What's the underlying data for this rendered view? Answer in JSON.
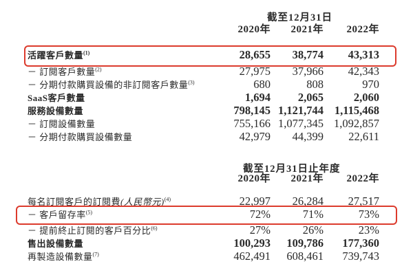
{
  "colors": {
    "highlight_red": "#dc3a2c",
    "text": "#2a2a2a",
    "background": "#ffffff"
  },
  "table1": {
    "period_header": "截至12月31日",
    "years": [
      "2020年",
      "2021年",
      "2022年"
    ],
    "rows": [
      {
        "label": "活躍客戶數量",
        "sup": "(1)",
        "values": [
          "28,655",
          "38,774",
          "43,313"
        ],
        "bold": true,
        "highlighted": true
      },
      {
        "label": "－ 訂閱客戶數量",
        "sup": "(2)",
        "values": [
          "27,975",
          "37,966",
          "42,343"
        ],
        "bold": false
      },
      {
        "label": "－ 分期付款購買設備的非訂閱客戶數量",
        "sup": "(3)",
        "values": [
          "680",
          "808",
          "970"
        ],
        "bold": false
      },
      {
        "label": "SaaS客戶數量",
        "sup": "",
        "values": [
          "1,694",
          "2,065",
          "2,060"
        ],
        "bold": true
      },
      {
        "label": "服務設備數量",
        "sup": "",
        "values": [
          "798,145",
          "1,121,744",
          "1,115,468"
        ],
        "bold": true
      },
      {
        "label": "－ 訂閱設備數量",
        "sup": "",
        "values": [
          "755,166",
          "1,077,345",
          "1,092,857"
        ],
        "bold": false
      },
      {
        "label": "－ 分期付款購買設備數量",
        "sup": "",
        "values": [
          "42,979",
          "44,399",
          "22,611"
        ],
        "bold": false
      }
    ]
  },
  "table2": {
    "period_header": "截至12月31日止年度",
    "years": [
      "2020年",
      "2021年",
      "2022年"
    ],
    "rows": [
      {
        "label": "每名訂閱客戶的訂閱費",
        "label_italic": "(人民幣元)",
        "sup": "(4)",
        "values": [
          "22,997",
          "26,284",
          "27,517"
        ],
        "bold": false
      },
      {
        "label": "－ 客戶留存率",
        "sup": "(5)",
        "values": [
          "72%",
          "71%",
          "73%"
        ],
        "bold": false,
        "highlighted": true
      },
      {
        "label": "－ 提前終止訂閱的客戶百分比",
        "sup": "(6)",
        "values": [
          "27%",
          "26%",
          "23%"
        ],
        "bold": false
      },
      {
        "label": "售出設備數量",
        "sup": "",
        "values": [
          "100,293",
          "109,786",
          "177,360"
        ],
        "bold": true
      },
      {
        "label": "再製造設備數量",
        "sup": "(7)",
        "values": [
          "462,491",
          "608,461",
          "739,743"
        ],
        "bold": false
      }
    ]
  }
}
